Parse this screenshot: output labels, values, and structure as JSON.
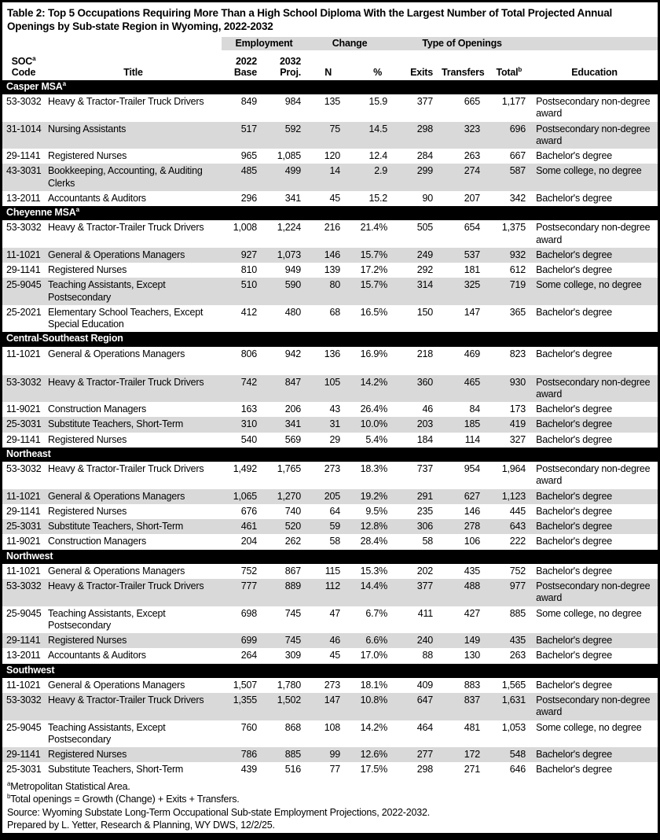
{
  "title": "Table 2: Top 5 Occupations Requiring More Than a High School Diploma With the Largest Number of Total Projected Annual Openings by Sub-state Region in Wyoming, 2022-2032",
  "header": {
    "groups": {
      "employment": "Employment",
      "change": "Change",
      "openings": "Type of Openings"
    },
    "soc_line1": "SOC",
    "soc_sup": "a",
    "soc_line2": "Code",
    "title_col": "Title",
    "base_line1": "2022",
    "base_line2": "Base",
    "proj_line1": "2032",
    "proj_line2": "Proj.",
    "n": "N",
    "pct": "%",
    "exits": "Exits",
    "transfers": "Transfers",
    "total": "Total",
    "total_sup": "b",
    "education": "Education"
  },
  "sections": [
    {
      "region": "Casper MSA",
      "region_sup": "a",
      "rows": [
        {
          "soc": "53-3032",
          "title": "Heavy & Tractor-Trailer Truck Drivers",
          "base": "849",
          "proj": "984",
          "n": "135",
          "pct": "15.9",
          "exits": "377",
          "transfers": "665",
          "total": "1,177",
          "education": "Postsecondary non-degree award"
        },
        {
          "soc": "31-1014",
          "title": "Nursing Assistants",
          "base": "517",
          "proj": "592",
          "n": "75",
          "pct": "14.5",
          "exits": "298",
          "transfers": "323",
          "total": "696",
          "education": "Postsecondary non-degree award"
        },
        {
          "soc": "29-1141",
          "title": "Registered Nurses",
          "base": "965",
          "proj": "1,085",
          "n": "120",
          "pct": "12.4",
          "exits": "284",
          "transfers": "263",
          "total": "667",
          "education": "Bachelor's degree"
        },
        {
          "soc": "43-3031",
          "title": "Bookkeeping, Accounting, & Auditing Clerks",
          "base": "485",
          "proj": "499",
          "n": "14",
          "pct": "2.9",
          "exits": "299",
          "transfers": "274",
          "total": "587",
          "education": "Some college, no degree"
        },
        {
          "soc": "13-2011",
          "title": "Accountants & Auditors",
          "base": "296",
          "proj": "341",
          "n": "45",
          "pct": "15.2",
          "exits": "90",
          "transfers": "207",
          "total": "342",
          "education": "Bachelor's degree"
        }
      ]
    },
    {
      "region": "Cheyenne MSA",
      "region_sup": "a",
      "rows": [
        {
          "soc": "53-3032",
          "title": "Heavy & Tractor-Trailer Truck Drivers",
          "base": "1,008",
          "proj": "1,224",
          "n": "216",
          "pct": "21.4%",
          "exits": "505",
          "transfers": "654",
          "total": "1,375",
          "education": "Postsecondary non-degree award"
        },
        {
          "soc": "11-1021",
          "title": "General & Operations Managers",
          "base": "927",
          "proj": "1,073",
          "n": "146",
          "pct": "15.7%",
          "exits": "249",
          "transfers": "537",
          "total": "932",
          "education": "Bachelor's degree"
        },
        {
          "soc": "29-1141",
          "title": "Registered Nurses",
          "base": "810",
          "proj": "949",
          "n": "139",
          "pct": "17.2%",
          "exits": "292",
          "transfers": "181",
          "total": "612",
          "education": "Bachelor's degree"
        },
        {
          "soc": "25-9045",
          "title": "Teaching Assistants, Except Postsecondary",
          "base": "510",
          "proj": "590",
          "n": "80",
          "pct": "15.7%",
          "exits": "314",
          "transfers": "325",
          "total": "719",
          "education": "Some college, no degree"
        },
        {
          "soc": "25-2021",
          "title": "Elementary School Teachers, Except Special Education",
          "base": "412",
          "proj": "480",
          "n": "68",
          "pct": "16.5%",
          "exits": "150",
          "transfers": "147",
          "total": "365",
          "education": "Bachelor's degree"
        }
      ]
    },
    {
      "region": "Central-Southeast Region",
      "region_sup": "",
      "rows": [
        {
          "soc": "11-1021",
          "title": "General & Operations Managers",
          "base": "806",
          "proj": "942",
          "n": "136",
          "pct": "16.9%",
          "exits": "218",
          "transfers": "469",
          "total": "823",
          "education": "Bachelor's degree",
          "tall": true
        },
        {
          "soc": "53-3032",
          "title": "Heavy & Tractor-Trailer Truck Drivers",
          "base": "742",
          "proj": "847",
          "n": "105",
          "pct": "14.2%",
          "exits": "360",
          "transfers": "465",
          "total": "930",
          "education": "Postsecondary non-degree award"
        },
        {
          "soc": "11-9021",
          "title": "Construction Managers",
          "base": "163",
          "proj": "206",
          "n": "43",
          "pct": "26.4%",
          "exits": "46",
          "transfers": "84",
          "total": "173",
          "education": "Bachelor's degree"
        },
        {
          "soc": "25-3031",
          "title": "Substitute Teachers, Short-Term",
          "base": "310",
          "proj": "341",
          "n": "31",
          "pct": "10.0%",
          "exits": "203",
          "transfers": "185",
          "total": "419",
          "education": "Bachelor's degree"
        },
        {
          "soc": "29-1141",
          "title": "Registered Nurses",
          "base": "540",
          "proj": "569",
          "n": "29",
          "pct": "5.4%",
          "exits": "184",
          "transfers": "114",
          "total": "327",
          "education": "Bachelor's degree"
        }
      ]
    },
    {
      "region": "Northeast",
      "region_sup": "",
      "rows": [
        {
          "soc": "53-3032",
          "title": "Heavy & Tractor-Trailer Truck Drivers",
          "base": "1,492",
          "proj": "1,765",
          "n": "273",
          "pct": "18.3%",
          "exits": "737",
          "transfers": "954",
          "total": "1,964",
          "education": "Postsecondary non-degree award"
        },
        {
          "soc": "11-1021",
          "title": "General & Operations Managers",
          "base": "1,065",
          "proj": "1,270",
          "n": "205",
          "pct": "19.2%",
          "exits": "291",
          "transfers": "627",
          "total": "1,123",
          "education": "Bachelor's degree"
        },
        {
          "soc": "29-1141",
          "title": "Registered Nurses",
          "base": "676",
          "proj": "740",
          "n": "64",
          "pct": "9.5%",
          "exits": "235",
          "transfers": "146",
          "total": "445",
          "education": "Bachelor's degree"
        },
        {
          "soc": "25-3031",
          "title": "Substitute Teachers, Short-Term",
          "base": "461",
          "proj": "520",
          "n": "59",
          "pct": "12.8%",
          "exits": "306",
          "transfers": "278",
          "total": "643",
          "education": "Bachelor's degree"
        },
        {
          "soc": "11-9021",
          "title": "Construction Managers",
          "base": "204",
          "proj": "262",
          "n": "58",
          "pct": "28.4%",
          "exits": "58",
          "transfers": "106",
          "total": "222",
          "education": "Bachelor's degree"
        }
      ]
    },
    {
      "region": "Northwest",
      "region_sup": "",
      "rows": [
        {
          "soc": "11-1021",
          "title": "General & Operations Managers",
          "base": "752",
          "proj": "867",
          "n": "115",
          "pct": "15.3%",
          "exits": "202",
          "transfers": "435",
          "total": "752",
          "education": "Bachelor's degree"
        },
        {
          "soc": "53-3032",
          "title": "Heavy & Tractor-Trailer Truck Drivers",
          "base": "777",
          "proj": "889",
          "n": "112",
          "pct": "14.4%",
          "exits": "377",
          "transfers": "488",
          "total": "977",
          "education": "Postsecondary non-degree award"
        },
        {
          "soc": "25-9045",
          "title": "Teaching Assistants, Except Postsecondary",
          "base": "698",
          "proj": "745",
          "n": "47",
          "pct": "6.7%",
          "exits": "411",
          "transfers": "427",
          "total": "885",
          "education": "Some college, no degree"
        },
        {
          "soc": "29-1141",
          "title": "Registered Nurses",
          "base": "699",
          "proj": "745",
          "n": "46",
          "pct": "6.6%",
          "exits": "240",
          "transfers": "149",
          "total": "435",
          "education": "Bachelor's degree"
        },
        {
          "soc": "13-2011",
          "title": "Accountants & Auditors",
          "base": "264",
          "proj": "309",
          "n": "45",
          "pct": "17.0%",
          "exits": "88",
          "transfers": "130",
          "total": "263",
          "education": "Bachelor's degree"
        }
      ]
    },
    {
      "region": "Southwest",
      "region_sup": "",
      "rows": [
        {
          "soc": "11-1021",
          "title": "General & Operations Managers",
          "base": "1,507",
          "proj": "1,780",
          "n": "273",
          "pct": "18.1%",
          "exits": "409",
          "transfers": "883",
          "total": "1,565",
          "education": "Bachelor's degree"
        },
        {
          "soc": "53-3032",
          "title": "Heavy & Tractor-Trailer Truck Drivers",
          "base": "1,355",
          "proj": "1,502",
          "n": "147",
          "pct": "10.8%",
          "exits": "647",
          "transfers": "837",
          "total": "1,631",
          "education": "Postsecondary non-degree award"
        },
        {
          "soc": "25-9045",
          "title": "Teaching Assistants, Except Postsecondary",
          "base": "760",
          "proj": "868",
          "n": "108",
          "pct": "14.2%",
          "exits": "464",
          "transfers": "481",
          "total": "1,053",
          "education": "Some college, no degree"
        },
        {
          "soc": "29-1141",
          "title": "Registered Nurses",
          "base": "786",
          "proj": "885",
          "n": "99",
          "pct": "12.6%",
          "exits": "277",
          "transfers": "172",
          "total": "548",
          "education": "Bachelor's degree"
        },
        {
          "soc": "25-3031",
          "title": "Substitute Teachers, Short-Term",
          "base": "439",
          "proj": "516",
          "n": "77",
          "pct": "17.5%",
          "exits": "298",
          "transfers": "271",
          "total": "646",
          "education": "Bachelor's degree"
        }
      ]
    }
  ],
  "footnotes": [
    {
      "sup": "a",
      "text": "Metropolitan Statistical Area."
    },
    {
      "sup": "b",
      "text": "Total openings = Growth (Change) + Exits + Transfers."
    },
    {
      "sup": "",
      "text": "Source: Wyoming Substate Long-Term Occupational Sub-state Employment Projections, 2022-2032."
    },
    {
      "sup": "",
      "text": "Prepared by L. Yetter, Research & Planning, WY DWS, 12/2/25."
    }
  ],
  "colors": {
    "band_black": "#000000",
    "stripe_gray": "#d9d9d9",
    "text": "#000000",
    "background": "#ffffff"
  }
}
